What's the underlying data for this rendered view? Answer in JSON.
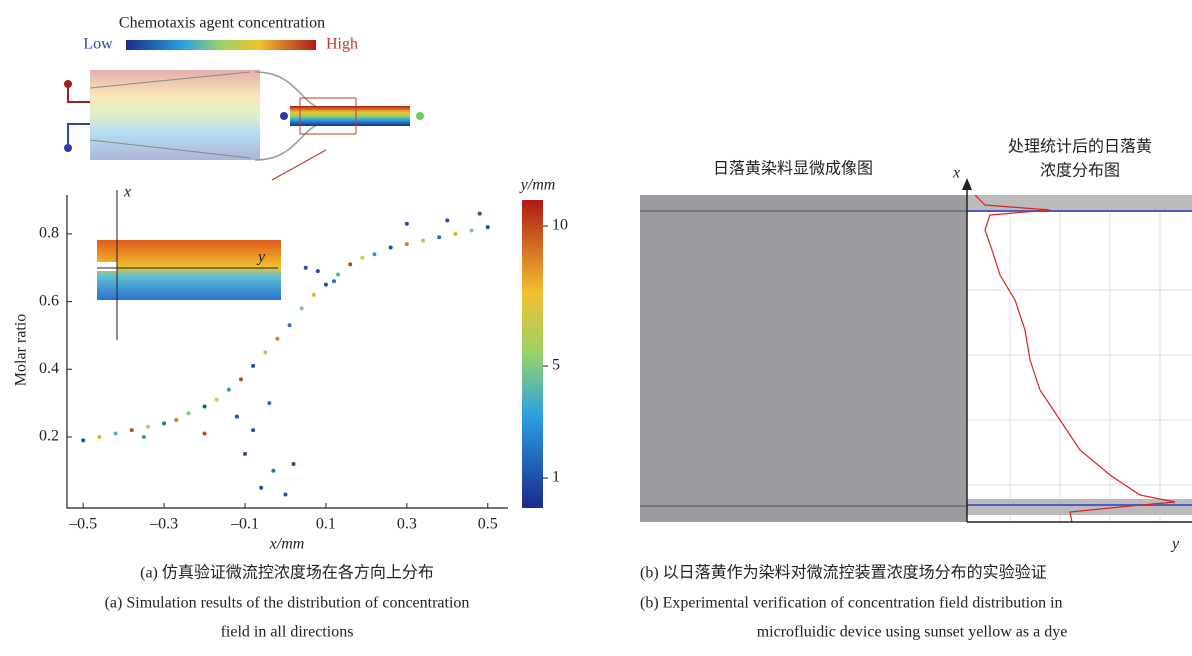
{
  "diagram": {
    "title": "Chemotaxis agent concentration",
    "low": "Low",
    "high": "High"
  },
  "chart_data": {
    "type": "scatter",
    "xlabel": "x/mm",
    "ylabel": "Molar ratio",
    "xlim": [
      -0.54,
      0.55
    ],
    "ylim": [
      -0.01,
      0.915
    ],
    "xticks": [
      {
        "value": -0.5,
        "label": "–0.5"
      },
      {
        "value": -0.3,
        "label": "–0.3"
      },
      {
        "value": -0.1,
        "label": "–0.1"
      },
      0.1,
      0.3,
      0.5
    ],
    "yticks": [
      0.2,
      0.4,
      0.6,
      0.8
    ],
    "x": [
      -0.5,
      -0.46,
      -0.42,
      -0.38,
      -0.34,
      -0.3,
      -0.27,
      -0.24,
      -0.2,
      -0.17,
      -0.14,
      -0.11,
      -0.08,
      -0.05,
      -0.02,
      0.01,
      0.04,
      0.07,
      0.1,
      0.13,
      0.16,
      0.19,
      0.22,
      0.26,
      0.3,
      0.34,
      0.38,
      0.42,
      0.46,
      0.5,
      -0.1,
      -0.06,
      -0.03,
      0.0,
      -0.08,
      -0.04,
      0.02,
      -0.12,
      0.05,
      0.08,
      0.12,
      0.3,
      0.4,
      0.48,
      -0.2,
      -0.35
    ],
    "values": [
      0.19,
      0.2,
      0.21,
      0.22,
      0.23,
      0.24,
      0.25,
      0.27,
      0.29,
      0.31,
      0.34,
      0.37,
      0.41,
      0.45,
      0.49,
      0.53,
      0.58,
      0.62,
      0.65,
      0.68,
      0.71,
      0.73,
      0.74,
      0.76,
      0.77,
      0.78,
      0.79,
      0.8,
      0.81,
      0.82,
      0.15,
      0.05,
      0.1,
      0.03,
      0.22,
      0.3,
      0.12,
      0.26,
      0.7,
      0.69,
      0.66,
      0.83,
      0.84,
      0.86,
      0.21,
      0.2
    ],
    "color_values": [
      1,
      8,
      4,
      10,
      6,
      2,
      9,
      5,
      1,
      7,
      3,
      10,
      1,
      6,
      9,
      2,
      5,
      8,
      1,
      4,
      10,
      7,
      3,
      1,
      9,
      6,
      2,
      8,
      5,
      1,
      1,
      1,
      2,
      1,
      1,
      2,
      1,
      1,
      1,
      1,
      2,
      1,
      1,
      1,
      10,
      3
    ],
    "colorbar": {
      "label": "y/mm",
      "lim": [
        -0.07,
        10.93
      ],
      "ticks": [
        1,
        5,
        10
      ]
    },
    "inset": {
      "x_label": "x",
      "y_label": "y"
    }
  },
  "panel_b": {
    "image_title": "日落黄染料显微成像图",
    "plot_title": [
      "处理统计后的日落黄",
      "浓度分布图"
    ],
    "x_label": "x",
    "y_label": "y"
  },
  "captions": {
    "a_cn": "(a) 仿真验证微流控浓度场在各方向上分布",
    "a_en": [
      "(a) Simulation results of the distribution of concentration",
      "field in all directions"
    ],
    "b_cn": "(b) 以日落黄作为染料对微流控装置浓度场分布的实验验证",
    "b_en": [
      "(b) Experimental verification of concentration field distribution in",
      "microfluidic device using sunset yellow as a dye"
    ]
  }
}
